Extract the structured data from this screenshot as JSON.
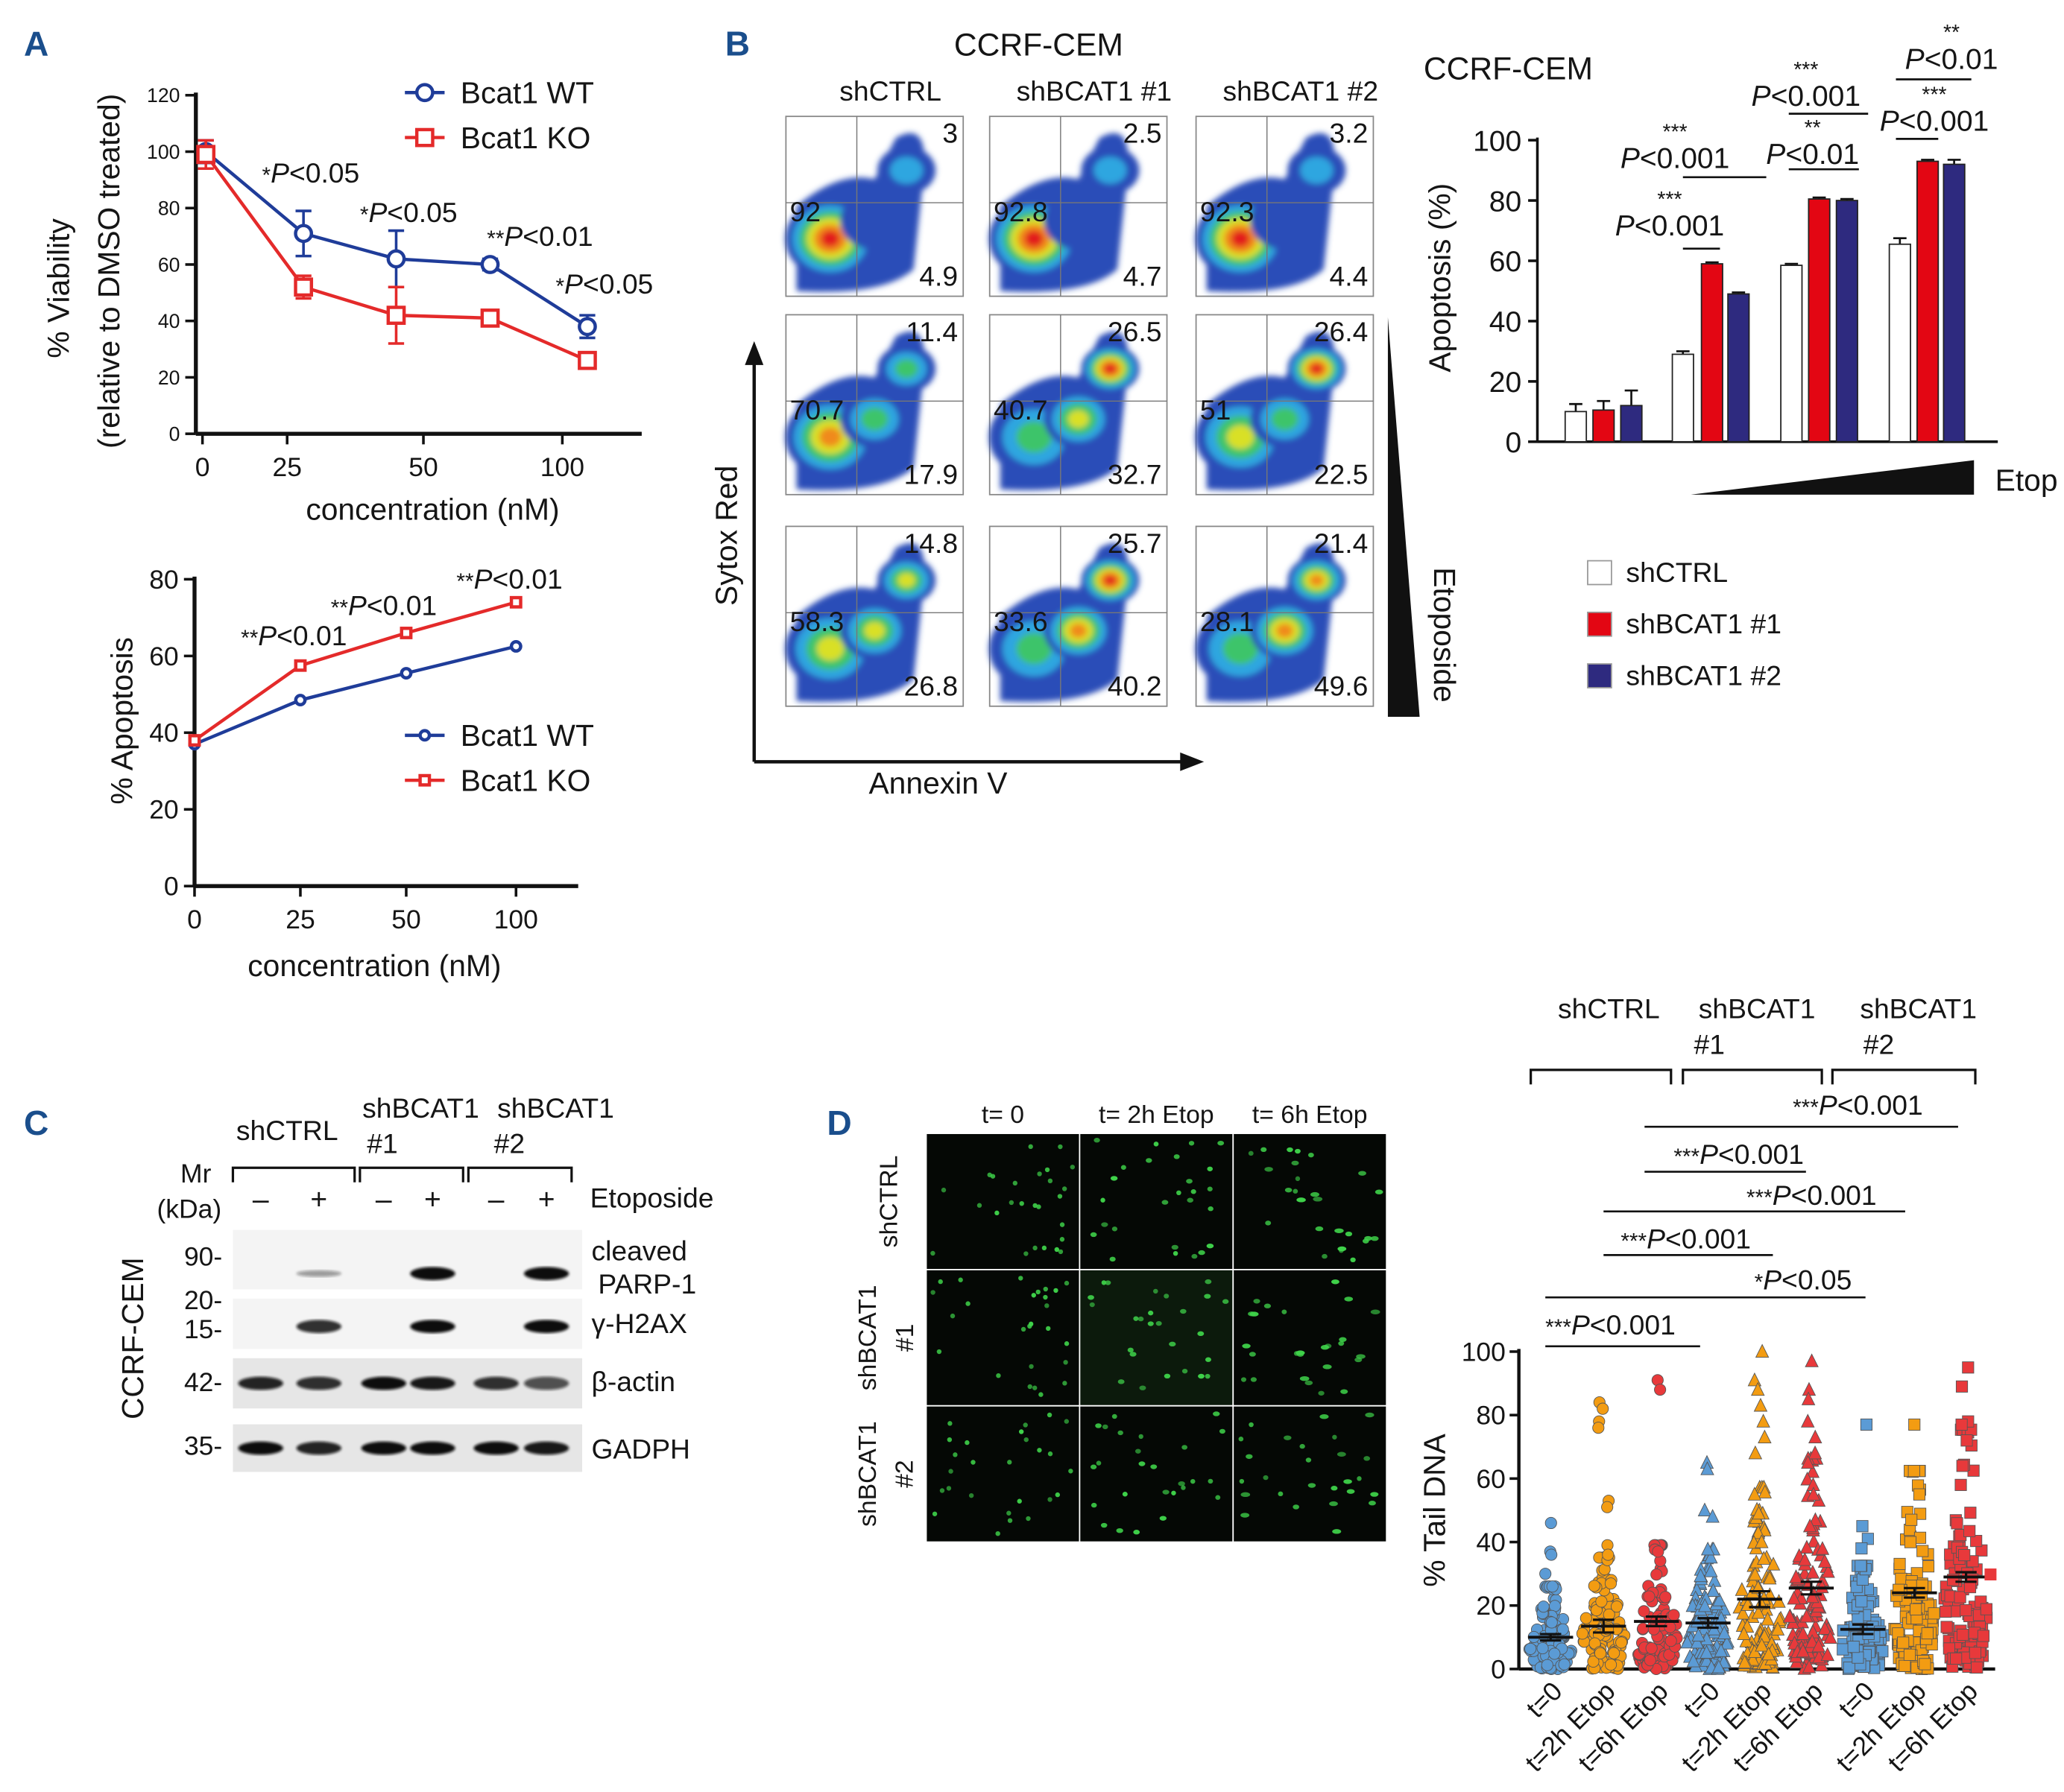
{
  "panel_labels": {
    "a": "A",
    "b": "B",
    "c": "C",
    "d": "D"
  },
  "colors": {
    "wt": "#1f3c99",
    "ko": "#e42a2a",
    "panel_label": "#1a4e8c",
    "shctrl": "#ffffff",
    "shbcat1_1": "#e30613",
    "shbcat1_2": "#2e2a7f",
    "t0": "#5b9bd5",
    "t2h": "#f39c12",
    "t6h": "#e8393b",
    "comet": "#3fd34a"
  },
  "chart_data": [
    {
      "type": "line",
      "ylabel_line1": "% Viability",
      "ylabel_line2": "(relative to DMSO treated)",
      "xlabel": "concentration (nM)",
      "xticks": [
        0,
        25,
        50,
        100
      ],
      "yticks": [
        0,
        20,
        40,
        60,
        80,
        100,
        120
      ],
      "ylim": [
        0,
        120
      ],
      "legend": "top-right",
      "series": [
        {
          "name": "Bcat1 WT",
          "marker": "circle",
          "color": "#1f3c99",
          "x": [
            1,
            28,
            45,
            74,
            109
          ],
          "y": [
            100,
            71,
            62,
            60,
            38
          ],
          "err": [
            4,
            8,
            10,
            2,
            4
          ]
        },
        {
          "name": "Bcat1 KO",
          "marker": "square",
          "color": "#e42a2a",
          "x": [
            1,
            28,
            45,
            74,
            109
          ],
          "y": [
            99,
            52,
            42,
            41,
            26
          ],
          "err": [
            5,
            4,
            10,
            1,
            2
          ]
        }
      ],
      "annotations": [
        {
          "stars": "*",
          "p": "P",
          "value": "<0.05"
        },
        {
          "stars": "*",
          "p": "P",
          "value": "<0.05"
        },
        {
          "stars": "**",
          "p": "P",
          "value": "<0.01"
        },
        {
          "stars": "*",
          "p": "P",
          "value": "<0.05"
        }
      ]
    },
    {
      "type": "line",
      "ylabel": "% Apoptosis",
      "xlabel": "concentration (nM)",
      "xticks": [
        0,
        25,
        50,
        100
      ],
      "yticks": [
        0,
        20,
        40,
        60,
        80
      ],
      "ylim": [
        0,
        80
      ],
      "legend": "center-right",
      "series": [
        {
          "name": "Bcat1 WT",
          "marker": "circle",
          "color": "#1f3c99",
          "x": [
            0,
            25,
            50,
            100
          ],
          "y": [
            37,
            48.5,
            55.5,
            62.5
          ]
        },
        {
          "name": "Bcat1 KO",
          "marker": "square",
          "color": "#e42a2a",
          "x": [
            0,
            25,
            50,
            100
          ],
          "y": [
            38,
            57.5,
            66,
            74
          ]
        }
      ],
      "annotations": [
        {
          "stars": "**",
          "p": "P",
          "value": "<0.01"
        },
        {
          "stars": "**",
          "p": "P",
          "value": "<0.01"
        },
        {
          "stars": "**",
          "p": "P",
          "value": "<0.01"
        }
      ]
    },
    {
      "type": "bar",
      "title": "CCRF-CEM",
      "ylabel": "Apoptosis (%)",
      "xlabel": "Etop",
      "yticks": [
        0,
        20,
        40,
        60,
        80,
        100
      ],
      "ylim": [
        0,
        100
      ],
      "legend": "bottom",
      "series": [
        {
          "name": "shCTRL",
          "color": "#ffffff",
          "values": [
            10,
            29,
            58.5,
            65.5
          ],
          "err": [
            2.5,
            1,
            0.5,
            2
          ]
        },
        {
          "name": "shBCAT1 #1",
          "color": "#e30613",
          "values": [
            10.5,
            59,
            80.5,
            93
          ],
          "err": [
            3,
            0.5,
            0.5,
            0.5
          ]
        },
        {
          "name": "shBCAT1 #2",
          "color": "#2e2a7f",
          "values": [
            12,
            49,
            80,
            92
          ],
          "err": [
            5,
            0.5,
            0.5,
            1.5
          ]
        }
      ],
      "annotations": [
        {
          "stars": "***",
          "p": "P",
          "value": "<0.001"
        },
        {
          "stars": "***",
          "p": "P",
          "value": "<0.001"
        },
        {
          "stars": "***",
          "p": "P",
          "value": "<0.001"
        },
        {
          "stars": "**",
          "p": "P",
          "value": "<0.01"
        },
        {
          "stars": "**",
          "p": "P",
          "value": "<0.01"
        },
        {
          "stars": "***",
          "p": "P",
          "value": "<0.001"
        }
      ]
    },
    {
      "type": "scatter",
      "ylabel": "% Tail DNA",
      "yticks": [
        0,
        20,
        40,
        60,
        80,
        100
      ],
      "ylim": [
        0,
        100
      ],
      "groups": [
        {
          "name": "shCTRL",
          "line1": "shCTRL",
          "line2": ""
        },
        {
          "name": "shBCAT1 #1",
          "line1": "shBCAT1",
          "line2": "#1"
        },
        {
          "name": "shBCAT1 #2",
          "line1": "shBCAT1",
          "line2": "#2"
        }
      ],
      "categories": [
        "t=0",
        "t=2h Etop",
        "t=6h Etop",
        "t=0",
        "t=2h Etop",
        "t=6h Etop",
        "t=0",
        "t=2h Etop",
        "t=6h Etop"
      ],
      "markers": [
        "circle",
        "circle",
        "circle",
        "triangle",
        "triangle",
        "triangle",
        "square",
        "square",
        "square"
      ],
      "means": [
        10,
        13.5,
        15,
        14.5,
        22,
        25.5,
        12.5,
        24,
        29
      ],
      "sem": [
        1,
        2,
        1.5,
        1.5,
        2.5,
        2,
        1.5,
        1.5,
        1.5
      ],
      "high_values": [
        [
          46,
          37,
          36,
          30
        ],
        [
          84,
          82,
          78,
          76,
          53,
          51,
          39,
          36
        ],
        [
          91,
          88,
          37
        ],
        [
          65,
          63,
          50,
          48
        ],
        [
          100,
          91,
          88,
          83,
          78,
          73,
          68,
          55,
          49,
          40
        ],
        [
          97,
          88,
          85,
          78,
          73,
          68,
          65,
          58,
          55,
          45
        ],
        [
          77,
          45,
          41,
          38
        ],
        [
          77,
          55,
          47
        ],
        [
          95,
          89,
          78,
          77,
          72,
          64,
          58
        ]
      ],
      "annotations": [
        {
          "stars": "***",
          "p": "P",
          "value": "<0.001"
        },
        {
          "stars": "***",
          "p": "P",
          "value": "<0.001"
        },
        {
          "stars": "***",
          "p": "P",
          "value": "<0.001"
        },
        {
          "stars": "***",
          "p": "P",
          "value": "<0.001"
        },
        {
          "stars": "*",
          "p": "P",
          "value": "<0.05"
        },
        {
          "stars": "***",
          "p": "P",
          "value": "<0.001"
        }
      ]
    }
  ],
  "flow": {
    "title": "CCRF-CEM",
    "columns": [
      "shCTRL",
      "shBCAT1 #1",
      "shBCAT1 #2"
    ],
    "x_axis": "Annexin V",
    "y_axis": "Sytox Red",
    "gradient_label": "Etoposide",
    "quadrants": [
      [
        {
          "ur": "3",
          "ul": "92",
          "lr": "4.9"
        },
        {
          "ur": "2.5",
          "ul": "92.8",
          "lr": "4.7"
        },
        {
          "ur": "3.2",
          "ul": "92.3",
          "lr": "4.4"
        }
      ],
      [
        {
          "ur": "11.4",
          "ul": "70.7",
          "lr": "17.9"
        },
        {
          "ur": "26.5",
          "ul": "40.7",
          "lr": "32.7"
        },
        {
          "ur": "26.4",
          "ul": "51",
          "lr": "22.5"
        }
      ],
      [
        {
          "ur": "14.8",
          "ul": "58.3",
          "lr": "26.8"
        },
        {
          "ur": "25.7",
          "ul": "33.6",
          "lr": "40.2"
        },
        {
          "ur": "21.4",
          "ul": "28.1",
          "lr": "49.6"
        }
      ]
    ]
  },
  "western": {
    "groups": [
      {
        "line1": "shCTRL",
        "line2": ""
      },
      {
        "line1": "shBCAT1",
        "line2": "#1"
      },
      {
        "line1": "shBCAT1",
        "line2": "#2"
      }
    ],
    "mr_label": "Mr",
    "kda_label": "(kDa)",
    "treatment_label": "Etoposide",
    "lane_signs": [
      "–",
      "+",
      "–",
      "+",
      "–",
      "+"
    ],
    "cell_line": "CCRF-CEM",
    "blots": [
      {
        "label1": "cleaved",
        "label2": "PARP-1",
        "markers": [
          "90-"
        ],
        "intensity": [
          0,
          0.3,
          0,
          1,
          0,
          1
        ]
      },
      {
        "label1": "γ-H2AX",
        "label2": "",
        "markers": [
          "20-",
          "15-"
        ],
        "intensity": [
          0,
          0.75,
          0,
          1,
          0,
          1
        ]
      },
      {
        "label1": "β-actin",
        "label2": "",
        "markers": [
          "42-"
        ],
        "intensity": [
          0.8,
          0.75,
          0.9,
          0.85,
          0.75,
          0.6
        ]
      },
      {
        "label1": "GADPH",
        "label2": "",
        "markers": [
          "35-"
        ],
        "intensity": [
          0.9,
          0.8,
          0.95,
          0.9,
          0.9,
          0.85
        ]
      }
    ]
  },
  "comet": {
    "columns": [
      "t= 0",
      "t= 2h Etop",
      "t= 6h Etop"
    ],
    "rows": [
      {
        "line1": "shCTRL",
        "line2": ""
      },
      {
        "line1": "shBCAT1",
        "line2": "#1"
      },
      {
        "line1": "shBCAT1",
        "line2": "#2"
      }
    ]
  }
}
